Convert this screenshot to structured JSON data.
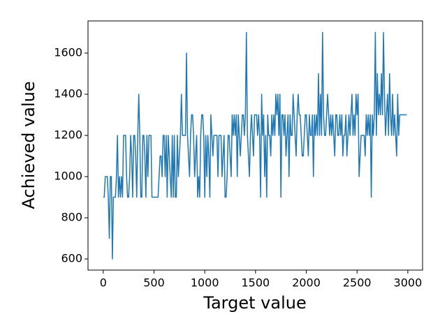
{
  "chart_data": {
    "type": "line",
    "xlabel": "Target value",
    "ylabel": "Achieved value",
    "color": "#1f77b4",
    "xlim": [
      -150,
      3145
    ],
    "ylim": [
      546,
      1756
    ],
    "xticks": [
      0,
      500,
      1000,
      1500,
      2000,
      2500,
      3000
    ],
    "yticks": [
      600,
      800,
      1000,
      1200,
      1400,
      1600
    ],
    "x": [
      0,
      10,
      20,
      30,
      40,
      50,
      60,
      70,
      80,
      90,
      100,
      110,
      120,
      130,
      140,
      150,
      160,
      170,
      180,
      190,
      200,
      210,
      220,
      230,
      240,
      250,
      260,
      270,
      280,
      290,
      300,
      310,
      320,
      330,
      340,
      350,
      360,
      370,
      380,
      390,
      400,
      410,
      420,
      430,
      440,
      450,
      460,
      470,
      480,
      490,
      500,
      510,
      520,
      530,
      540,
      550,
      560,
      570,
      580,
      590,
      600,
      610,
      620,
      630,
      640,
      650,
      660,
      670,
      680,
      690,
      700,
      710,
      720,
      730,
      740,
      750,
      760,
      770,
      780,
      790,
      800,
      810,
      820,
      830,
      840,
      850,
      860,
      870,
      880,
      890,
      900,
      910,
      920,
      930,
      940,
      950,
      960,
      970,
      980,
      990,
      1000,
      1010,
      1020,
      1030,
      1040,
      1050,
      1060,
      1070,
      1080,
      1090,
      1100,
      1110,
      1120,
      1130,
      1140,
      1150,
      1160,
      1170,
      1180,
      1190,
      1200,
      1210,
      1220,
      1230,
      1240,
      1250,
      1260,
      1270,
      1280,
      1290,
      1300,
      1310,
      1320,
      1330,
      1340,
      1350,
      1360,
      1370,
      1380,
      1390,
      1400,
      1410,
      1420,
      1430,
      1440,
      1450,
      1460,
      1470,
      1480,
      1490,
      1500,
      1510,
      1520,
      1530,
      1540,
      1550,
      1560,
      1570,
      1580,
      1590,
      1600,
      1610,
      1620,
      1630,
      1640,
      1650,
      1660,
      1670,
      1680,
      1690,
      1700,
      1710,
      1720,
      1730,
      1740,
      1750,
      1760,
      1770,
      1780,
      1790,
      1800,
      1810,
      1820,
      1830,
      1840,
      1850,
      1860,
      1870,
      1880,
      1890,
      1900,
      1910,
      1920,
      1930,
      1940,
      1950,
      1960,
      1970,
      1980,
      1990,
      2000,
      2010,
      2020,
      2030,
      2040,
      2050,
      2060,
      2070,
      2080,
      2090,
      2100,
      2110,
      2120,
      2130,
      2140,
      2150,
      2160,
      2170,
      2180,
      2190,
      2200,
      2210,
      2220,
      2230,
      2240,
      2250,
      2260,
      2270,
      2280,
      2290,
      2300,
      2310,
      2320,
      2330,
      2340,
      2350,
      2360,
      2370,
      2380,
      2390,
      2400,
      2410,
      2420,
      2430,
      2440,
      2450,
      2460,
      2470,
      2480,
      2490,
      2500,
      2510,
      2520,
      2530,
      2540,
      2550,
      2560,
      2570,
      2580,
      2590,
      2600,
      2610,
      2620,
      2630,
      2640,
      2650,
      2660,
      2670,
      2680,
      2690,
      2700,
      2710,
      2720,
      2730,
      2740,
      2750,
      2760,
      2770,
      2780,
      2790,
      2800,
      2810,
      2820,
      2830,
      2840,
      2850,
      2860,
      2870,
      2880,
      2890,
      2900,
      2910,
      2920,
      2930,
      2940,
      2950,
      2960,
      2970,
      2980,
      2990
    ],
    "values": [
      900,
      900,
      1000,
      1000,
      1000,
      900,
      700,
      1000,
      1000,
      600,
      900,
      900,
      900,
      1000,
      1200,
      900,
      1000,
      900,
      1000,
      900,
      1200,
      1200,
      1200,
      1000,
      900,
      900,
      1000,
      1200,
      1100,
      900,
      1200,
      1200,
      1100,
      900,
      1200,
      1400,
      1200,
      900,
      900,
      1200,
      1200,
      1100,
      900,
      1200,
      1000,
      1200,
      1200,
      1200,
      900,
      900,
      900,
      900,
      900,
      900,
      900,
      1000,
      1100,
      1100,
      1000,
      1200,
      1200,
      1000,
      1200,
      900,
      1200,
      1100,
      1000,
      900,
      1200,
      900,
      1200,
      900,
      900,
      1200,
      1000,
      1100,
      1200,
      1400,
      1200,
      1200,
      1200,
      1200,
      1600,
      1200,
      1100,
      1000,
      1200,
      1300,
      1300,
      1200,
      1000,
      1100,
      1200,
      900,
      1000,
      900,
      1200,
      1300,
      1300,
      1200,
      900,
      1200,
      1000,
      1200,
      1100,
      900,
      1300,
      1200,
      1100,
      1200,
      1200,
      1200,
      1200,
      1000,
      1200,
      1200,
      1200,
      1000,
      1100,
      1200,
      900,
      900,
      1000,
      1200,
      1200,
      1100,
      1000,
      1300,
      1200,
      1300,
      1200,
      1300,
      1000,
      1300,
      1200,
      1100,
      1200,
      1300,
      1300,
      1200,
      1300,
      1700,
      1200,
      1100,
      1000,
      1200,
      1300,
      1200,
      1100,
      1300,
      1300,
      1300,
      1200,
      1300,
      1200,
      900,
      1400,
      1200,
      1300,
      1000,
      1200,
      900,
      1300,
      1200,
      1200,
      1100,
      1300,
      1200,
      1300,
      1200,
      1400,
      1300,
      1400,
      1200,
      1400,
      900,
      1300,
      1300,
      1200,
      1300,
      1100,
      1200,
      1300,
      1000,
      1300,
      1200,
      1200,
      1400,
      1300,
      1200,
      1100,
      1300,
      1400,
      1300,
      1300,
      1200,
      1100,
      1100,
      1200,
      1300,
      1300,
      1200,
      1100,
      1300,
      1200,
      1200,
      1300,
      1000,
      1300,
      1200,
      1300,
      1200,
      1500,
      1200,
      1400,
      1200,
      1700,
      1300,
      1200,
      1200,
      1300,
      1400,
      1300,
      1200,
      1300,
      1200,
      1300,
      1200,
      1100,
      1300,
      1300,
      1200,
      1200,
      1300,
      1200,
      1300,
      1100,
      1200,
      1200,
      1300,
      1100,
      1200,
      1300,
      1200,
      1300,
      1400,
      1200,
      1300,
      1200,
      1400,
      1300,
      1400,
      1000,
      1100,
      1200,
      1200,
      1200,
      1200,
      1100,
      1300,
      1200,
      1300,
      1200,
      1300,
      900,
      1300,
      1200,
      1300,
      1700,
      1200,
      1500,
      1300,
      1400,
      1300,
      1500,
      1300,
      1700,
      1400,
      1200,
      1300,
      1400,
      1200,
      1500,
      1300,
      1200,
      1400,
      1200,
      1300,
      1200,
      1100,
      1400,
      1200,
      1300,
      1300,
      1300,
      1300,
      1300,
      1300,
      1300,
      1300
    ]
  }
}
